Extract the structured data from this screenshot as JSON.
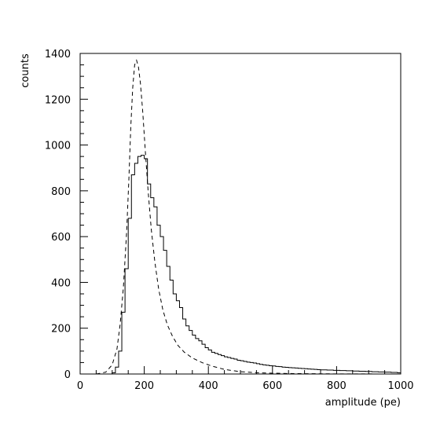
{
  "chart_data": {
    "type": "line",
    "title": "",
    "xlabel": "amplitude (pe)",
    "ylabel": "counts",
    "xlim": [
      0,
      1000
    ],
    "ylim": [
      0,
      1400
    ],
    "xticks": [
      0,
      200,
      400,
      600,
      800,
      1000
    ],
    "yticks": [
      0,
      200,
      400,
      600,
      800,
      1000,
      1200,
      1400
    ],
    "grid": false,
    "legend": "none",
    "series": [
      {
        "style": "solid-histogram",
        "bin_width": 10,
        "bins": [
          {
            "x": 80,
            "y": 0
          },
          {
            "x": 90,
            "y": 0
          },
          {
            "x": 100,
            "y": 5
          },
          {
            "x": 110,
            "y": 30
          },
          {
            "x": 120,
            "y": 100
          },
          {
            "x": 130,
            "y": 270
          },
          {
            "x": 140,
            "y": 460
          },
          {
            "x": 150,
            "y": 680
          },
          {
            "x": 160,
            "y": 870
          },
          {
            "x": 170,
            "y": 920
          },
          {
            "x": 180,
            "y": 950
          },
          {
            "x": 190,
            "y": 955
          },
          {
            "x": 200,
            "y": 940
          },
          {
            "x": 210,
            "y": 830
          },
          {
            "x": 220,
            "y": 770
          },
          {
            "x": 230,
            "y": 730
          },
          {
            "x": 240,
            "y": 650
          },
          {
            "x": 250,
            "y": 600
          },
          {
            "x": 260,
            "y": 540
          },
          {
            "x": 270,
            "y": 470
          },
          {
            "x": 280,
            "y": 410
          },
          {
            "x": 290,
            "y": 350
          },
          {
            "x": 300,
            "y": 320
          },
          {
            "x": 310,
            "y": 290
          },
          {
            "x": 320,
            "y": 240
          },
          {
            "x": 330,
            "y": 210
          },
          {
            "x": 340,
            "y": 190
          },
          {
            "x": 350,
            "y": 170
          },
          {
            "x": 360,
            "y": 155
          },
          {
            "x": 370,
            "y": 145
          },
          {
            "x": 380,
            "y": 130
          },
          {
            "x": 390,
            "y": 115
          },
          {
            "x": 400,
            "y": 105
          },
          {
            "x": 410,
            "y": 95
          },
          {
            "x": 420,
            "y": 90
          },
          {
            "x": 430,
            "y": 85
          },
          {
            "x": 440,
            "y": 80
          },
          {
            "x": 450,
            "y": 75
          },
          {
            "x": 460,
            "y": 72
          },
          {
            "x": 470,
            "y": 68
          },
          {
            "x": 480,
            "y": 65
          },
          {
            "x": 490,
            "y": 60
          },
          {
            "x": 500,
            "y": 58
          },
          {
            "x": 510,
            "y": 55
          },
          {
            "x": 520,
            "y": 52
          },
          {
            "x": 530,
            "y": 50
          },
          {
            "x": 540,
            "y": 48
          },
          {
            "x": 550,
            "y": 45
          },
          {
            "x": 560,
            "y": 42
          },
          {
            "x": 570,
            "y": 40
          },
          {
            "x": 580,
            "y": 38
          },
          {
            "x": 590,
            "y": 36
          },
          {
            "x": 600,
            "y": 35
          },
          {
            "x": 610,
            "y": 33
          },
          {
            "x": 620,
            "y": 32
          },
          {
            "x": 630,
            "y": 30
          },
          {
            "x": 640,
            "y": 29
          },
          {
            "x": 650,
            "y": 28
          },
          {
            "x": 660,
            "y": 27
          },
          {
            "x": 670,
            "y": 26
          },
          {
            "x": 680,
            "y": 25
          },
          {
            "x": 690,
            "y": 24
          },
          {
            "x": 700,
            "y": 23
          },
          {
            "x": 710,
            "y": 22
          },
          {
            "x": 720,
            "y": 21
          },
          {
            "x": 730,
            "y": 20
          },
          {
            "x": 740,
            "y": 19
          },
          {
            "x": 750,
            "y": 18
          },
          {
            "x": 760,
            "y": 18
          },
          {
            "x": 770,
            "y": 17
          },
          {
            "x": 780,
            "y": 17
          },
          {
            "x": 790,
            "y": 16
          },
          {
            "x": 800,
            "y": 16
          },
          {
            "x": 810,
            "y": 15
          },
          {
            "x": 820,
            "y": 15
          },
          {
            "x": 830,
            "y": 14
          },
          {
            "x": 840,
            "y": 14
          },
          {
            "x": 850,
            "y": 13
          },
          {
            "x": 860,
            "y": 13
          },
          {
            "x": 870,
            "y": 12
          },
          {
            "x": 880,
            "y": 12
          },
          {
            "x": 890,
            "y": 11
          },
          {
            "x": 900,
            "y": 11
          },
          {
            "x": 910,
            "y": 10
          },
          {
            "x": 920,
            "y": 10
          },
          {
            "x": 930,
            "y": 9
          },
          {
            "x": 940,
            "y": 9
          },
          {
            "x": 950,
            "y": 8
          },
          {
            "x": 960,
            "y": 8
          },
          {
            "x": 970,
            "y": 7
          },
          {
            "x": 980,
            "y": 7
          },
          {
            "x": 990,
            "y": 5
          }
        ]
      },
      {
        "style": "dashed-curve",
        "points": [
          {
            "x": 50,
            "y": 0
          },
          {
            "x": 80,
            "y": 8
          },
          {
            "x": 100,
            "y": 40
          },
          {
            "x": 115,
            "y": 110
          },
          {
            "x": 125,
            "y": 220
          },
          {
            "x": 135,
            "y": 380
          },
          {
            "x": 145,
            "y": 620
          },
          {
            "x": 152,
            "y": 850
          },
          {
            "x": 158,
            "y": 1080
          },
          {
            "x": 164,
            "y": 1250
          },
          {
            "x": 170,
            "y": 1350
          },
          {
            "x": 176,
            "y": 1370
          },
          {
            "x": 182,
            "y": 1340
          },
          {
            "x": 188,
            "y": 1270
          },
          {
            "x": 195,
            "y": 1150
          },
          {
            "x": 203,
            "y": 980
          },
          {
            "x": 212,
            "y": 800
          },
          {
            "x": 222,
            "y": 630
          },
          {
            "x": 233,
            "y": 490
          },
          {
            "x": 245,
            "y": 370
          },
          {
            "x": 258,
            "y": 280
          },
          {
            "x": 272,
            "y": 215
          },
          {
            "x": 288,
            "y": 165
          },
          {
            "x": 305,
            "y": 125
          },
          {
            "x": 325,
            "y": 95
          },
          {
            "x": 350,
            "y": 70
          },
          {
            "x": 380,
            "y": 50
          },
          {
            "x": 410,
            "y": 35
          },
          {
            "x": 450,
            "y": 20
          },
          {
            "x": 500,
            "y": 10
          },
          {
            "x": 560,
            "y": 5
          },
          {
            "x": 650,
            "y": 2
          },
          {
            "x": 800,
            "y": 0.5
          },
          {
            "x": 1000,
            "y": 0
          }
        ]
      }
    ]
  }
}
